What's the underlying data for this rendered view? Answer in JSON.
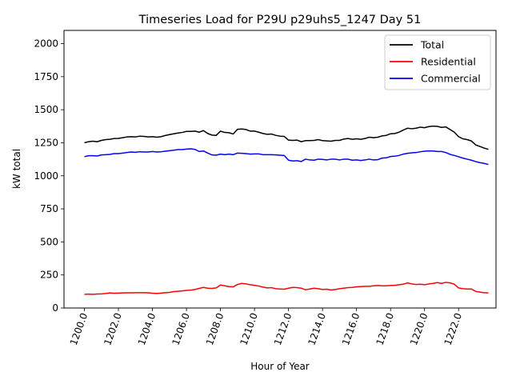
{
  "chart_data": {
    "type": "line",
    "title": "Timeseries Load for P29U p29uhs5_1247  Day 51",
    "xlabel": "Hour of Year",
    "ylabel": "kW total",
    "xlim": [
      1198.8,
      1224.2
    ],
    "ylim": [
      0,
      2100
    ],
    "xticks": [
      1200,
      1202,
      1204,
      1206,
      1208,
      1210,
      1212,
      1214,
      1216,
      1218,
      1220,
      1222
    ],
    "xtick_labels": [
      "1200.0",
      "1202.0",
      "1204.0",
      "1206.0",
      "1208.0",
      "1210.0",
      "1212.0",
      "1214.0",
      "1216.0",
      "1218.0",
      "1220.0",
      "1222.0"
    ],
    "yticks": [
      0,
      250,
      500,
      750,
      1000,
      1250,
      1500,
      1750,
      2000
    ],
    "ytick_labels": [
      "0",
      "250",
      "500",
      "750",
      "1000",
      "1250",
      "1500",
      "1750",
      "2000"
    ],
    "legend_position": "top-right",
    "grid": false,
    "x": [
      1200.0,
      1200.25,
      1200.5,
      1200.75,
      1201.0,
      1201.25,
      1201.5,
      1201.75,
      1202.0,
      1202.25,
      1202.5,
      1202.75,
      1203.0,
      1203.25,
      1203.5,
      1203.75,
      1204.0,
      1204.25,
      1204.5,
      1204.75,
      1205.0,
      1205.25,
      1205.5,
      1205.75,
      1206.0,
      1206.25,
      1206.5,
      1206.75,
      1207.0,
      1207.25,
      1207.5,
      1207.75,
      1208.0,
      1208.25,
      1208.5,
      1208.75,
      1209.0,
      1209.25,
      1209.5,
      1209.75,
      1210.0,
      1210.25,
      1210.5,
      1210.75,
      1211.0,
      1211.25,
      1211.5,
      1211.75,
      1212.0,
      1212.25,
      1212.5,
      1212.75,
      1213.0,
      1213.25,
      1213.5,
      1213.75,
      1214.0,
      1214.25,
      1214.5,
      1214.75,
      1215.0,
      1215.25,
      1215.5,
      1215.75,
      1216.0,
      1216.25,
      1216.5,
      1216.75,
      1217.0,
      1217.25,
      1217.5,
      1217.75,
      1218.0,
      1218.25,
      1218.5,
      1218.75,
      1219.0,
      1219.25,
      1219.5,
      1219.75,
      1220.0,
      1220.25,
      1220.5,
      1220.75,
      1221.0,
      1221.25,
      1221.5,
      1221.75,
      1222.0,
      1222.25,
      1222.5,
      1222.75,
      1223.0,
      1223.25,
      1223.5,
      1223.75
    ],
    "series": [
      {
        "name": "Total",
        "color": "#000000",
        "values": [
          1250,
          1258,
          1262,
          1258,
          1268,
          1274,
          1276,
          1282,
          1283,
          1288,
          1294,
          1296,
          1294,
          1300,
          1298,
          1294,
          1296,
          1292,
          1296,
          1305,
          1312,
          1318,
          1324,
          1328,
          1336,
          1336,
          1338,
          1330,
          1342,
          1320,
          1308,
          1306,
          1338,
          1328,
          1326,
          1316,
          1352,
          1354,
          1350,
          1338,
          1338,
          1330,
          1320,
          1314,
          1316,
          1306,
          1300,
          1298,
          1270,
          1268,
          1270,
          1258,
          1266,
          1266,
          1268,
          1274,
          1266,
          1264,
          1262,
          1268,
          1268,
          1278,
          1282,
          1276,
          1280,
          1276,
          1282,
          1292,
          1288,
          1292,
          1302,
          1306,
          1318,
          1320,
          1330,
          1346,
          1360,
          1356,
          1360,
          1368,
          1364,
          1372,
          1376,
          1374,
          1366,
          1370,
          1350,
          1330,
          1296,
          1280,
          1274,
          1264,
          1234,
          1222,
          1210,
          1200
        ]
      },
      {
        "name": "Residential",
        "color": "#ff0000",
        "values": [
          104,
          105,
          104,
          106,
          107,
          110,
          114,
          112,
          113,
          114,
          115,
          115,
          116,
          116,
          116,
          115,
          112,
          110,
          113,
          116,
          118,
          124,
          126,
          129,
          133,
          135,
          140,
          148,
          156,
          150,
          148,
          152,
          174,
          168,
          162,
          160,
          178,
          186,
          182,
          176,
          172,
          166,
          158,
          152,
          154,
          146,
          144,
          142,
          150,
          156,
          154,
          150,
          138,
          144,
          150,
          146,
          140,
          142,
          136,
          140,
          146,
          150,
          154,
          156,
          160,
          162,
          164,
          164,
          168,
          170,
          168,
          168,
          170,
          172,
          176,
          180,
          190,
          182,
          178,
          180,
          176,
          182,
          186,
          192,
          186,
          194,
          190,
          180,
          152,
          146,
          144,
          144,
          126,
          120,
          116,
          114
        ]
      },
      {
        "name": "Commercial",
        "color": "#0000ff",
        "values": [
          1145,
          1152,
          1152,
          1150,
          1158,
          1160,
          1162,
          1168,
          1168,
          1172,
          1176,
          1180,
          1178,
          1182,
          1180,
          1180,
          1184,
          1180,
          1182,
          1186,
          1190,
          1194,
          1198,
          1198,
          1202,
          1204,
          1200,
          1184,
          1188,
          1172,
          1158,
          1156,
          1164,
          1160,
          1164,
          1160,
          1172,
          1170,
          1168,
          1164,
          1166,
          1166,
          1160,
          1160,
          1160,
          1158,
          1156,
          1154,
          1118,
          1112,
          1114,
          1108,
          1126,
          1120,
          1118,
          1126,
          1124,
          1120,
          1126,
          1126,
          1120,
          1126,
          1126,
          1118,
          1120,
          1116,
          1120,
          1126,
          1120,
          1122,
          1134,
          1136,
          1146,
          1148,
          1154,
          1164,
          1170,
          1174,
          1176,
          1182,
          1186,
          1188,
          1188,
          1184,
          1184,
          1176,
          1162,
          1154,
          1144,
          1134,
          1126,
          1118,
          1108,
          1100,
          1094,
          1086
        ]
      }
    ]
  }
}
